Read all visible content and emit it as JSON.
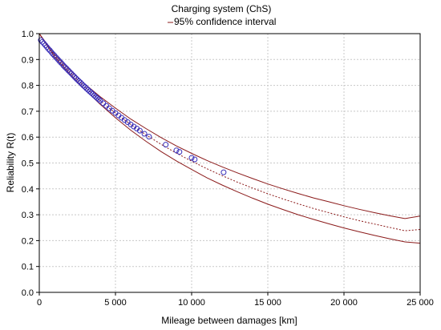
{
  "chart_data": {
    "type": "scatter",
    "title": "Charging system (ChS)",
    "legend": {
      "text": "95% confidence interval",
      "placement": "top-center"
    },
    "xlabel": "Mileage between damages [km]",
    "ylabel": "Reliability R(t)",
    "xlim": [
      0,
      25000
    ],
    "ylim": [
      0.0,
      1.0
    ],
    "grid": true,
    "x_ticks": [
      0,
      5000,
      10000,
      15000,
      20000,
      25000
    ],
    "x_tick_labels": [
      "0",
      "5 000",
      "10 000",
      "15 000",
      "20 000",
      "25 000"
    ],
    "y_ticks": [
      0.0,
      0.1,
      0.2,
      0.3,
      0.4,
      0.5,
      0.6,
      0.7,
      0.8,
      0.9,
      1.0
    ],
    "y_tick_labels": [
      "0.0",
      "0.1",
      "0.2",
      "0.3",
      "0.4",
      "0.5",
      "0.6",
      "0.7",
      "0.8",
      "0.9",
      "1.0"
    ],
    "colors": {
      "points": "#3a2fb8",
      "fit_line": "#8b1a1a",
      "ci_lines": "#8b1a1a",
      "grid": "#c8c8c8"
    },
    "series": [
      {
        "type": "scatter",
        "x": [
          100,
          200,
          300,
          400,
          500,
          600,
          700,
          800,
          900,
          1000,
          1100,
          1200,
          1300,
          1400,
          1500,
          1600,
          1700,
          1800,
          1900,
          2000,
          2100,
          2200,
          2300,
          2400,
          2500,
          2600,
          2700,
          2800,
          2900,
          3000,
          3100,
          3200,
          3300,
          3400,
          3500,
          3600,
          3700,
          3800,
          3900,
          4000,
          4200,
          4400,
          4600,
          4800,
          5000,
          5200,
          5400,
          5600,
          5800,
          6000,
          6200,
          6400,
          6600,
          6900,
          7200,
          8300,
          9000,
          9200,
          10000,
          10200,
          12100
        ],
        "y": [
          0.975,
          0.968,
          0.962,
          0.955,
          0.948,
          0.941,
          0.935,
          0.928,
          0.921,
          0.915,
          0.908,
          0.902,
          0.895,
          0.889,
          0.883,
          0.876,
          0.87,
          0.864,
          0.858,
          0.852,
          0.846,
          0.84,
          0.834,
          0.828,
          0.822,
          0.816,
          0.811,
          0.805,
          0.799,
          0.794,
          0.788,
          0.783,
          0.777,
          0.772,
          0.767,
          0.761,
          0.756,
          0.751,
          0.746,
          0.741,
          0.731,
          0.721,
          0.711,
          0.702,
          0.693,
          0.684,
          0.675,
          0.666,
          0.658,
          0.649,
          0.641,
          0.633,
          0.625,
          0.613,
          0.602,
          0.571,
          0.549,
          0.543,
          0.52,
          0.514,
          0.464
        ]
      },
      {
        "type": "line",
        "style": "dotted",
        "x": [
          0,
          1000,
          2000,
          3000,
          4000,
          5000,
          6000,
          7000,
          8000,
          9000,
          10000,
          11000,
          12000,
          13000,
          14000,
          15000,
          16000,
          17000,
          18000,
          19000,
          20000,
          21000,
          22000,
          23000,
          24000,
          25000
        ],
        "y": [
          1.0,
          0.915,
          0.852,
          0.794,
          0.741,
          0.693,
          0.649,
          0.609,
          0.572,
          0.538,
          0.507,
          0.478,
          0.451,
          0.426,
          0.403,
          0.381,
          0.361,
          0.342,
          0.324,
          0.308,
          0.292,
          0.277,
          0.264,
          0.251,
          0.238,
          0.243
        ]
      },
      {
        "type": "line",
        "style": "solid",
        "x": [
          0,
          1000,
          2000,
          3000,
          4000,
          5000,
          6000,
          7000,
          8000,
          9000,
          10000,
          11000,
          12000,
          13000,
          14000,
          15000,
          16000,
          17000,
          18000,
          19000,
          20000,
          21000,
          22000,
          23000,
          24000,
          25000
        ],
        "y": [
          1.0,
          0.92,
          0.86,
          0.805,
          0.756,
          0.712,
          0.67,
          0.633,
          0.598,
          0.566,
          0.537,
          0.51,
          0.485,
          0.462,
          0.44,
          0.419,
          0.4,
          0.382,
          0.365,
          0.35,
          0.335,
          0.321,
          0.308,
          0.296,
          0.285,
          0.295
        ]
      },
      {
        "type": "line",
        "style": "solid",
        "x": [
          0,
          1000,
          2000,
          3000,
          4000,
          5000,
          6000,
          7000,
          8000,
          9000,
          10000,
          11000,
          12000,
          13000,
          14000,
          15000,
          16000,
          17000,
          18000,
          19000,
          20000,
          21000,
          22000,
          23000,
          24000,
          25000
        ],
        "y": [
          1.0,
          0.91,
          0.845,
          0.783,
          0.727,
          0.675,
          0.627,
          0.584,
          0.544,
          0.508,
          0.475,
          0.443,
          0.415,
          0.389,
          0.364,
          0.341,
          0.32,
          0.3,
          0.282,
          0.265,
          0.249,
          0.234,
          0.22,
          0.207,
          0.195,
          0.19
        ]
      }
    ]
  }
}
